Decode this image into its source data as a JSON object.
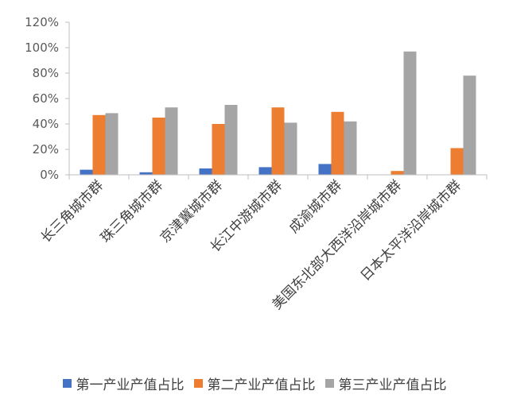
{
  "chart_data": {
    "type": "bar",
    "categories": [
      "长三角城市群",
      "珠三角城市群",
      "京津冀城市群",
      "长江中游城市群",
      "成渝城市群",
      "美国东北部大西洋沿岸城市群",
      "日本太平洋沿岸城市群"
    ],
    "series": [
      {
        "name": "第一产业产值占比",
        "color": "#4472C4",
        "values": [
          4,
          2,
          5,
          6,
          8.5,
          0,
          0
        ]
      },
      {
        "name": "第二产业产值占比",
        "color": "#ED7D31",
        "values": [
          47,
          45,
          40,
          53,
          49.5,
          3,
          21
        ]
      },
      {
        "name": "第三产业产值占比",
        "color": "#A5A5A5",
        "values": [
          48.5,
          53,
          55,
          41,
          42,
          97,
          78
        ]
      }
    ],
    "ylim": [
      0,
      120
    ],
    "yticks": [
      "0%",
      "20%",
      "40%",
      "60%",
      "80%",
      "100%",
      "120%"
    ],
    "ytick_values": [
      0,
      20,
      40,
      60,
      80,
      100,
      120
    ],
    "grid": false,
    "legend_position": "bottom"
  }
}
